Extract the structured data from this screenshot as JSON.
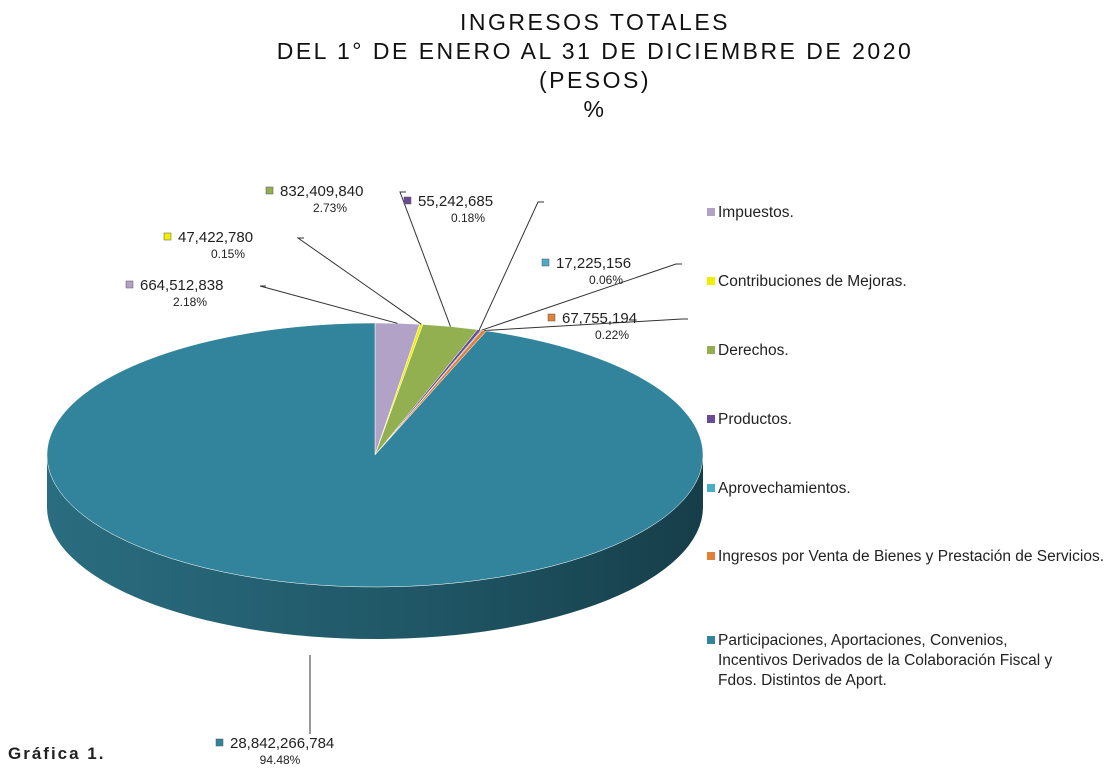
{
  "chart_data": {
    "type": "pie",
    "title": [
      "INGRESOS TOTALES",
      "DEL 1° DE ENERO AL 31 DE DICIEMBRE DE 2020",
      "(PESOS)",
      "%"
    ],
    "caption": "Gráfica 1.",
    "categories": [
      "Impuestos.",
      "Contribuciones de Mejoras.",
      "Derechos.",
      "Productos.",
      "Aprovechamientos.",
      "Ingresos por Venta de Bienes y Prestación de Servicios.",
      "Participaciones, Aportaciones, Convenios, Incentivos Derivados de la Colaboración Fiscal y Fdos. Distintos de Aport."
    ],
    "values": [
      664512838,
      47422780,
      832409840,
      55242685,
      17225156,
      67755194,
      28842266784
    ],
    "value_labels": [
      "664,512,838",
      "47,422,780",
      "832,409,840",
      "55,242,685",
      "17,225,156",
      "67,755,194",
      "28,842,266,784"
    ],
    "percent_labels": [
      "2.18%",
      "0.15%",
      "2.73%",
      "0.18%",
      "0.06%",
      "0.22%",
      "94.48%"
    ],
    "colors": [
      "#b3a2c7",
      "#f2ee00",
      "#92b050",
      "#6a4c96",
      "#4bacc6",
      "#e2803a",
      "#31849b"
    ],
    "legend": "right"
  }
}
